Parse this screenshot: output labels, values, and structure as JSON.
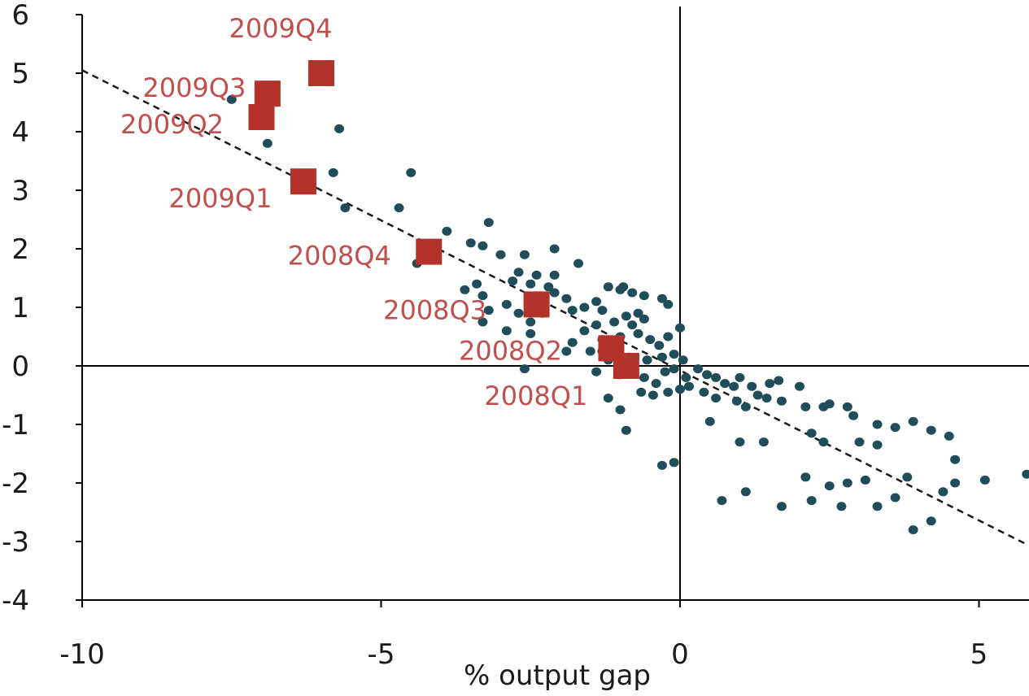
{
  "chart_data": {
    "type": "scatter",
    "title": "",
    "xlabel": "% output gap",
    "ylabel": "",
    "xlim": [
      -10,
      5.8
    ],
    "ylim": [
      -4,
      6
    ],
    "x_ticks": [
      -10,
      -5,
      0,
      5
    ],
    "y_ticks": [
      6,
      5,
      4,
      3,
      2,
      1,
      0,
      -1,
      -2,
      -3,
      -4
    ],
    "grid": false,
    "legend": "none",
    "colors": {
      "historical": "#1f4e5a",
      "highlight": "#b3322a",
      "highlight_label": "#c0504d",
      "trend": "#1a1a1a"
    },
    "trend_line": {
      "x": [
        -10,
        5.8
      ],
      "y": [
        5.05,
        -3.05
      ]
    },
    "highlight_series": [
      {
        "label": "2009Q4",
        "x": -6.0,
        "y": 5.0
      },
      {
        "label": "2009Q3",
        "x": -6.9,
        "y": 4.65
      },
      {
        "label": "2009Q2",
        "x": -7.0,
        "y": 4.25
      },
      {
        "label": "2009Q1",
        "x": -6.3,
        "y": 3.15
      },
      {
        "label": "2008Q4",
        "x": -4.2,
        "y": 1.95
      },
      {
        "label": "2008Q3",
        "x": -2.4,
        "y": 1.05
      },
      {
        "label": "2008Q2",
        "x": -1.15,
        "y": 0.3
      },
      {
        "label": "2008Q1",
        "x": -0.9,
        "y": 0.0
      }
    ],
    "historical_points": [
      [
        -7.5,
        4.55
      ],
      [
        -6.9,
        3.8
      ],
      [
        -5.7,
        4.05
      ],
      [
        -5.8,
        3.3
      ],
      [
        -5.6,
        2.7
      ],
      [
        -4.5,
        3.3
      ],
      [
        -4.7,
        2.7
      ],
      [
        -3.9,
        2.3
      ],
      [
        -3.2,
        2.45
      ],
      [
        -3.5,
        2.1
      ],
      [
        -3.3,
        2.05
      ],
      [
        -3.0,
        1.9
      ],
      [
        -2.6,
        1.9
      ],
      [
        -2.1,
        2.0
      ],
      [
        -1.7,
        1.75
      ],
      [
        -2.7,
        1.6
      ],
      [
        -2.4,
        1.55
      ],
      [
        -2.1,
        1.55
      ],
      [
        -2.8,
        1.45
      ],
      [
        -2.5,
        1.4
      ],
      [
        -2.2,
        1.35
      ],
      [
        -3.4,
        1.4
      ],
      [
        -3.6,
        1.3
      ],
      [
        -3.3,
        1.2
      ],
      [
        -2.1,
        1.25
      ],
      [
        -1.9,
        1.15
      ],
      [
        -1.6,
        1.0
      ],
      [
        -1.4,
        1.1
      ],
      [
        -1.0,
        1.3
      ],
      [
        -0.8,
        1.25
      ],
      [
        -0.6,
        1.2
      ],
      [
        -0.3,
        1.15
      ],
      [
        -0.2,
        1.05
      ],
      [
        -1.2,
        1.35
      ],
      [
        -0.95,
        1.35
      ],
      [
        -2.9,
        1.05
      ],
      [
        -2.7,
        0.9
      ],
      [
        -2.5,
        0.75
      ],
      [
        -2.3,
        0.9
      ],
      [
        -1.8,
        0.95
      ],
      [
        -1.3,
        0.95
      ],
      [
        -0.9,
        0.85
      ],
      [
        -0.7,
        0.9
      ],
      [
        -0.6,
        0.8
      ],
      [
        -0.8,
        0.7
      ],
      [
        -1.1,
        0.75
      ],
      [
        -1.4,
        0.7
      ],
      [
        -1.6,
        0.6
      ],
      [
        -2.5,
        0.55
      ],
      [
        -2.9,
        0.6
      ],
      [
        -3.3,
        0.75
      ],
      [
        -4.4,
        1.75
      ],
      [
        -4.2,
        1.9
      ],
      [
        -3.2,
        0.95
      ],
      [
        -1.8,
        0.4
      ],
      [
        -1.3,
        0.45
      ],
      [
        -1.0,
        0.5
      ],
      [
        -0.7,
        0.55
      ],
      [
        -0.5,
        0.45
      ],
      [
        -0.35,
        0.35
      ],
      [
        -0.2,
        0.5
      ],
      [
        0.0,
        0.65
      ],
      [
        -0.1,
        0.2
      ],
      [
        -0.3,
        0.15
      ],
      [
        -0.55,
        0.1
      ],
      [
        -1.2,
        0.1
      ],
      [
        -1.5,
        0.25
      ],
      [
        -1.9,
        0.25
      ],
      [
        -2.6,
        -0.05
      ],
      [
        -1.4,
        -0.1
      ],
      [
        -1.0,
        -0.15
      ],
      [
        -0.6,
        -0.2
      ],
      [
        -0.4,
        -0.3
      ],
      [
        -0.25,
        -0.1
      ],
      [
        -0.1,
        -0.05
      ],
      [
        0.05,
        0.1
      ],
      [
        0.1,
        -0.2
      ],
      [
        0.3,
        -0.05
      ],
      [
        0.45,
        -0.15
      ],
      [
        0.6,
        -0.2
      ],
      [
        0.75,
        -0.3
      ],
      [
        0.9,
        -0.35
      ],
      [
        1.0,
        -0.2
      ],
      [
        1.2,
        -0.35
      ],
      [
        1.3,
        -0.5
      ],
      [
        1.5,
        -0.3
      ],
      [
        1.65,
        -0.25
      ],
      [
        2.0,
        -0.35
      ],
      [
        0.4,
        -0.45
      ],
      [
        0.6,
        -0.55
      ],
      [
        0.95,
        -0.6
      ],
      [
        1.1,
        -0.7
      ],
      [
        1.45,
        -0.55
      ],
      [
        1.7,
        -0.6
      ],
      [
        2.1,
        -0.7
      ],
      [
        2.4,
        -0.7
      ],
      [
        2.5,
        -0.65
      ],
      [
        2.8,
        -0.7
      ],
      [
        2.9,
        -0.85
      ],
      [
        3.3,
        -1.0
      ],
      [
        3.6,
        -1.05
      ],
      [
        3.9,
        -0.95
      ],
      [
        4.2,
        -1.1
      ],
      [
        4.5,
        -1.2
      ],
      [
        3.0,
        -1.3
      ],
      [
        3.3,
        -1.35
      ],
      [
        2.4,
        -1.3
      ],
      [
        2.2,
        -1.15
      ],
      [
        1.0,
        -1.3
      ],
      [
        1.4,
        -1.3
      ],
      [
        0.5,
        -0.95
      ],
      [
        4.6,
        -1.6
      ],
      [
        4.6,
        -2.0
      ],
      [
        4.4,
        -2.15
      ],
      [
        5.1,
        -1.95
      ],
      [
        3.8,
        -1.9
      ],
      [
        3.1,
        -1.95
      ],
      [
        2.8,
        -2.0
      ],
      [
        2.5,
        -2.05
      ],
      [
        2.2,
        -2.3
      ],
      [
        2.7,
        -2.4
      ],
      [
        3.3,
        -2.4
      ],
      [
        3.6,
        -2.25
      ],
      [
        4.2,
        -2.65
      ],
      [
        3.9,
        -2.8
      ],
      [
        2.1,
        -1.9
      ],
      [
        1.1,
        -2.15
      ],
      [
        0.7,
        -2.3
      ],
      [
        1.7,
        -2.4
      ],
      [
        -0.1,
        -1.65
      ],
      [
        -0.3,
        -1.7
      ],
      [
        -0.9,
        -1.1
      ],
      [
        -1.0,
        -0.75
      ],
      [
        -1.2,
        -0.55
      ],
      [
        -0.65,
        -0.45
      ],
      [
        -0.45,
        -0.5
      ],
      [
        -0.2,
        -0.45
      ],
      [
        0.0,
        -0.4
      ],
      [
        0.15,
        -0.35
      ],
      [
        -1.3,
        0.25
      ],
      [
        -0.85,
        0.15
      ],
      [
        5.8,
        -1.85
      ]
    ]
  }
}
